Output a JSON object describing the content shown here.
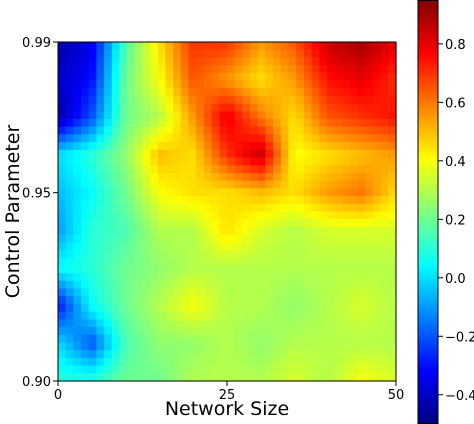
{
  "chart_data": {
    "type": "heatmap",
    "title": "",
    "xlabel": "Network Size",
    "ylabel": "Control Parameter",
    "x_range": [
      0,
      50
    ],
    "y_range": [
      0.9,
      0.99
    ],
    "x_ticks": [
      {
        "value": 0,
        "label": "0"
      },
      {
        "value": 25,
        "label": "25"
      },
      {
        "value": 50,
        "label": "50"
      }
    ],
    "y_ticks": [
      {
        "value": 0.9,
        "label": "0.90"
      },
      {
        "value": 0.95,
        "label": "0.95"
      },
      {
        "value": 0.99,
        "label": "0.99"
      }
    ],
    "colorbar": {
      "colormap": "jet",
      "range": [
        -0.5,
        0.95
      ],
      "ticks": [
        {
          "value": -0.4,
          "label": "−0.4"
        },
        {
          "value": -0.2,
          "label": "−0.2"
        },
        {
          "value": 0.0,
          "label": "0.0"
        },
        {
          "value": 0.2,
          "label": "0.2"
        },
        {
          "value": 0.4,
          "label": "0.4"
        },
        {
          "value": 0.6,
          "label": "0.6"
        },
        {
          "value": 0.8,
          "label": "0.8"
        }
      ]
    },
    "grid_x": [
      0,
      5,
      10,
      15,
      20,
      25,
      30,
      35,
      40,
      45,
      50
    ],
    "grid_y": [
      0.99,
      0.98,
      0.97,
      0.96,
      0.95,
      0.94,
      0.93,
      0.92,
      0.91,
      0.9
    ],
    "values": [
      [
        -0.45,
        -0.35,
        0.15,
        0.45,
        0.7,
        0.7,
        0.55,
        0.65,
        0.85,
        0.9,
        0.8
      ],
      [
        -0.4,
        -0.3,
        0.2,
        0.4,
        0.65,
        0.55,
        0.45,
        0.55,
        0.75,
        0.8,
        0.7
      ],
      [
        -0.45,
        -0.2,
        0.2,
        0.3,
        0.55,
        0.8,
        0.6,
        0.45,
        0.65,
        0.7,
        0.75
      ],
      [
        0.0,
        0.1,
        0.25,
        0.5,
        0.45,
        0.7,
        0.85,
        0.4,
        0.45,
        0.5,
        0.55
      ],
      [
        -0.05,
        0.05,
        0.2,
        0.4,
        0.45,
        0.45,
        0.5,
        0.45,
        0.55,
        0.6,
        0.45
      ],
      [
        -0.1,
        0.1,
        0.15,
        0.3,
        0.3,
        0.45,
        0.35,
        0.3,
        0.35,
        0.35,
        0.35
      ],
      [
        0.05,
        0.1,
        0.2,
        0.25,
        0.3,
        0.3,
        0.3,
        0.3,
        0.3,
        0.3,
        0.3
      ],
      [
        -0.3,
        0.05,
        0.2,
        0.3,
        0.4,
        0.3,
        0.3,
        0.25,
        0.3,
        0.35,
        0.3
      ],
      [
        0.0,
        -0.2,
        0.15,
        0.25,
        0.25,
        0.3,
        0.25,
        0.3,
        0.3,
        0.3,
        0.3
      ],
      [
        0.1,
        0.1,
        0.2,
        0.2,
        0.3,
        0.3,
        0.3,
        0.35,
        0.3,
        0.4,
        0.35
      ]
    ]
  }
}
